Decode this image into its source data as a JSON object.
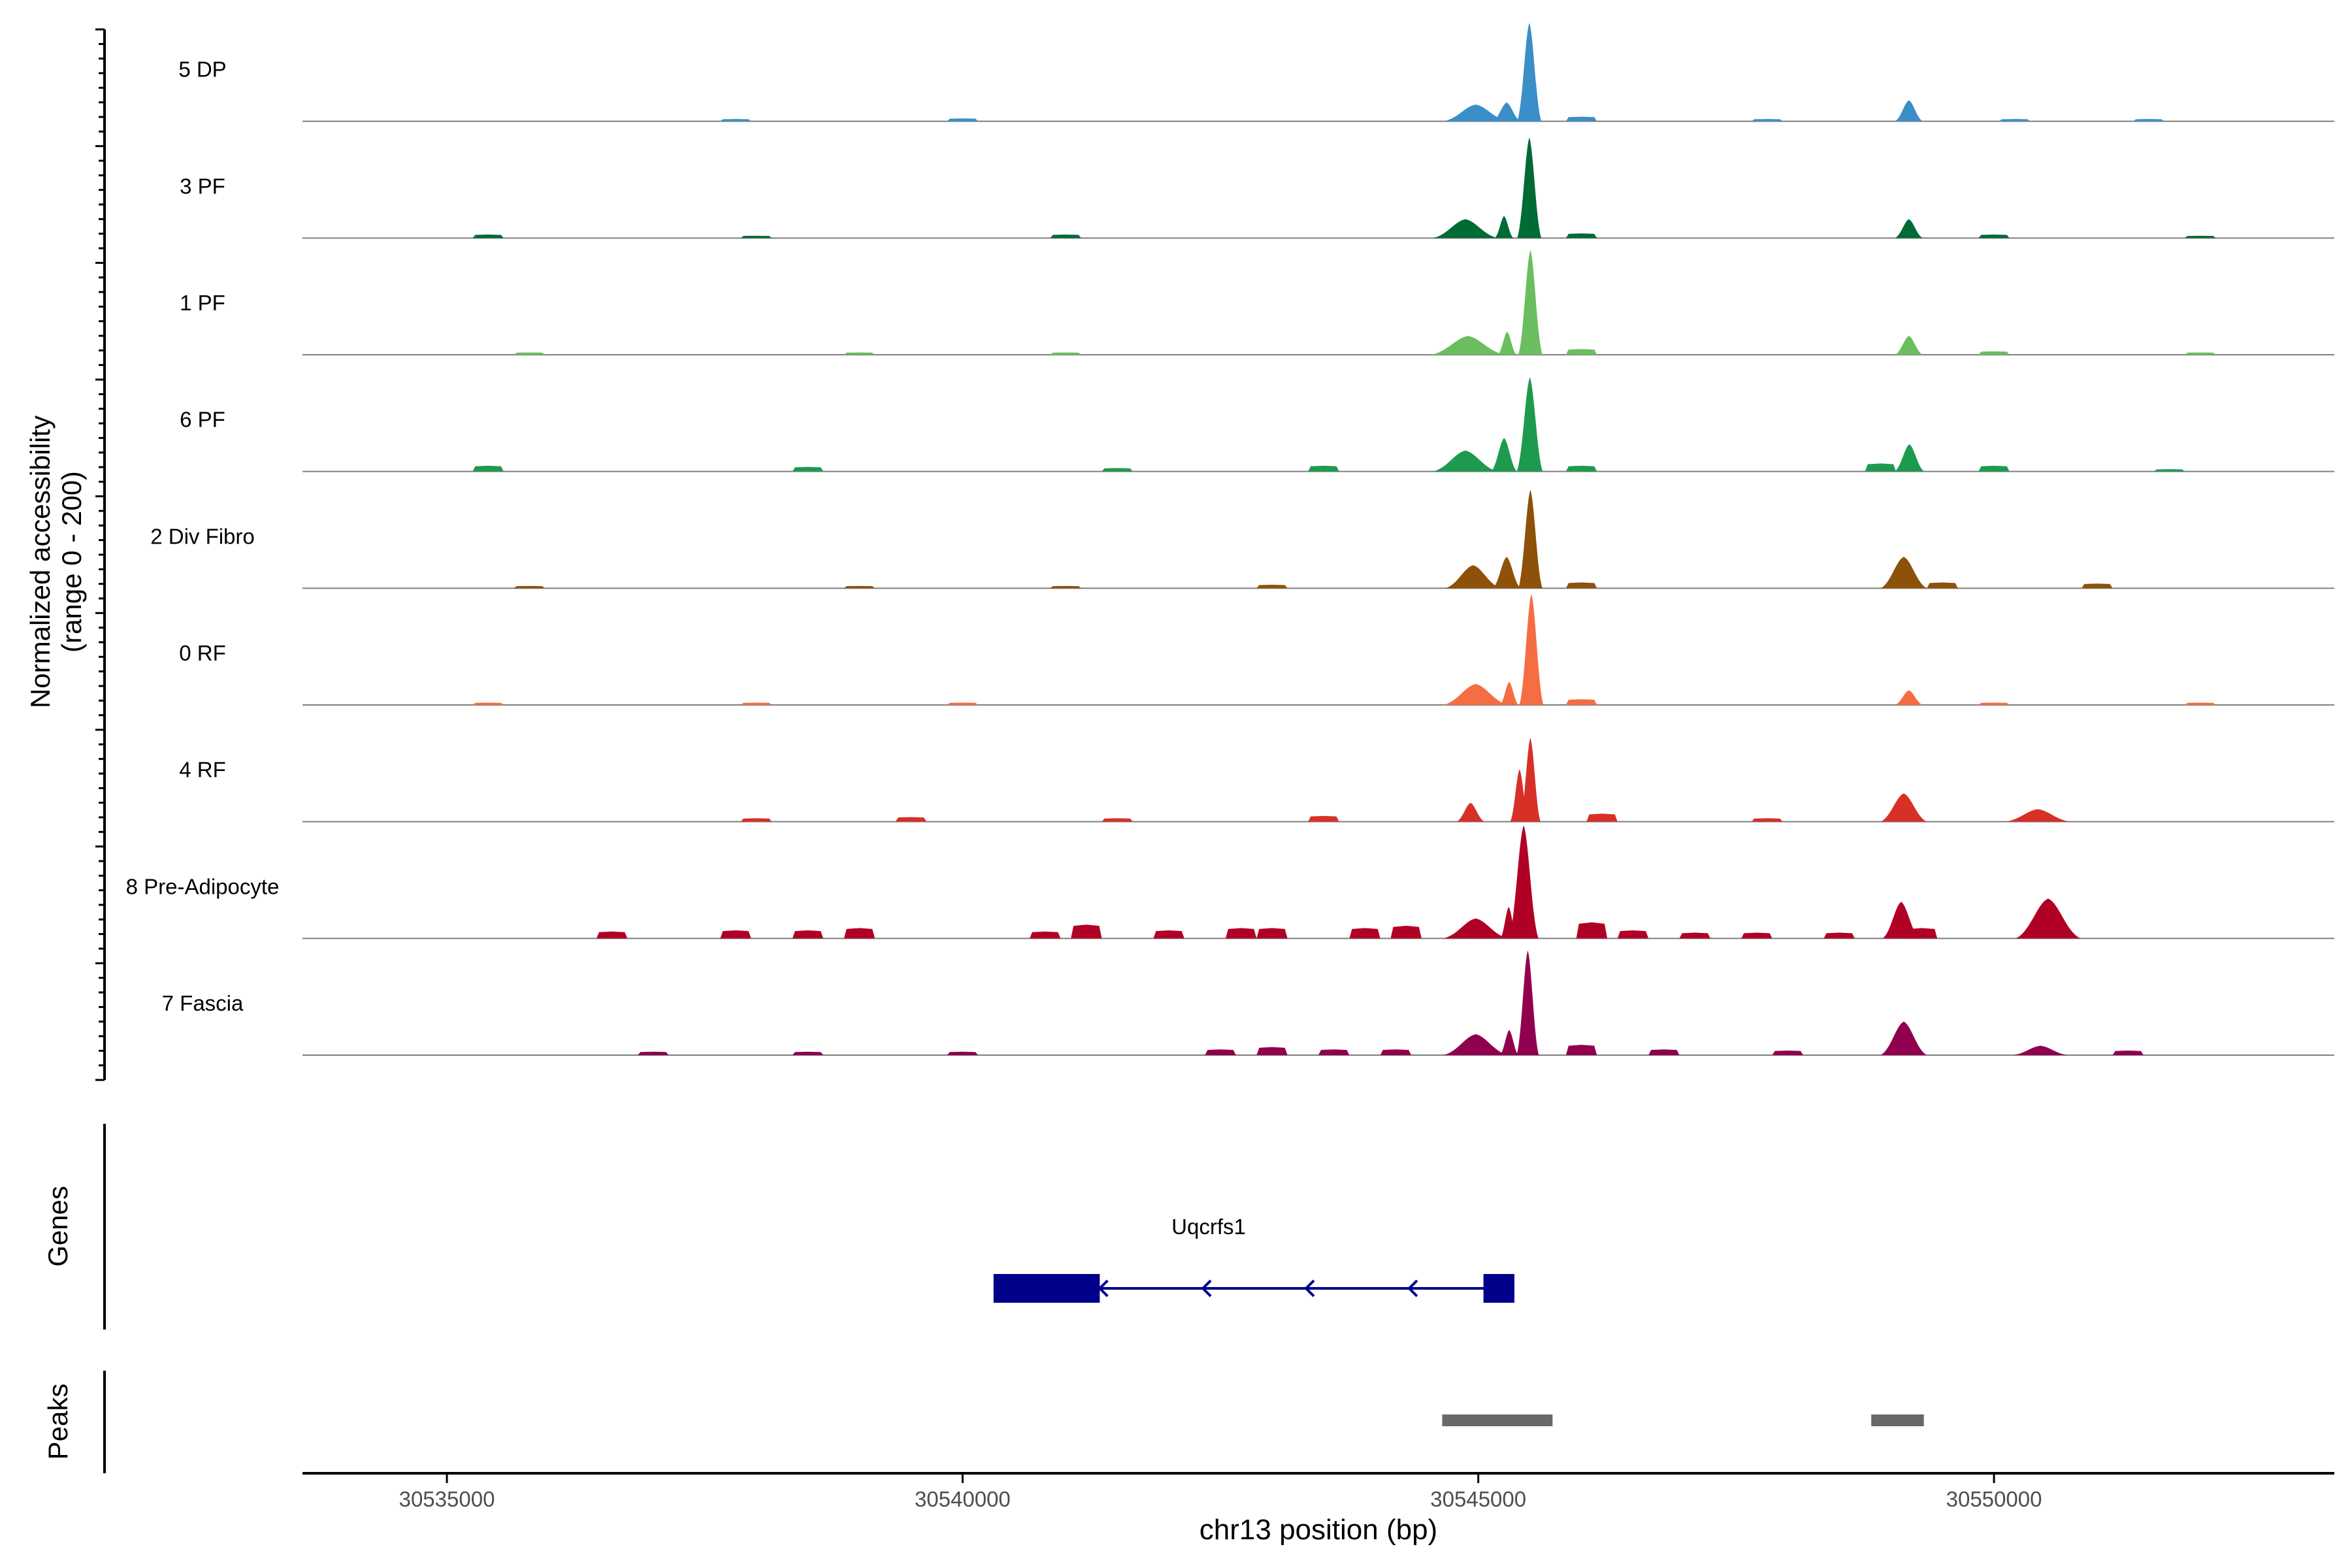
{
  "chart_data": {
    "type": "area",
    "title": "",
    "y_axis_label_line1": "Normalized accessibility",
    "y_axis_label_line2": "(range 0 - 200)",
    "xlabel": "chr13 position (bp)",
    "xlim": [
      30533600,
      30553300
    ],
    "x_ticks": [
      30535000,
      30540000,
      30545000,
      30550000
    ],
    "x_tick_labels": [
      "30535000",
      "30540000",
      "30545000",
      "30550000"
    ],
    "ylim": [
      0,
      200
    ],
    "tracks": [
      {
        "name": "5 DP",
        "color": "#3B8EC8",
        "peaks": [
          [
            30544800,
            30545150,
            32
          ],
          [
            30545200,
            30545350,
            36
          ],
          [
            30545430,
            30545560,
            188
          ],
          [
            30549100,
            30549250,
            40
          ]
        ],
        "noise": [
          [
            30537800,
            4
          ],
          [
            30540000,
            5
          ],
          [
            30546000,
            8
          ],
          [
            30547800,
            4
          ],
          [
            30550200,
            4
          ],
          [
            30551500,
            4
          ]
        ]
      },
      {
        "name": "3 PF",
        "color": "#006B35",
        "peaks": [
          [
            30544700,
            30545050,
            36
          ],
          [
            30545200,
            30545300,
            42
          ],
          [
            30545430,
            30545560,
            192
          ],
          [
            30549100,
            30549250,
            36
          ]
        ],
        "noise": [
          [
            30535400,
            6
          ],
          [
            30538000,
            4
          ],
          [
            30541000,
            6
          ],
          [
            30546000,
            8
          ],
          [
            30550000,
            6
          ],
          [
            30552000,
            4
          ]
        ]
      },
      {
        "name": "1 PF",
        "color": "#6BBE5F",
        "peaks": [
          [
            30544700,
            30545100,
            36
          ],
          [
            30545230,
            30545330,
            44
          ],
          [
            30545440,
            30545570,
            200
          ],
          [
            30549100,
            30549250,
            36
          ]
        ],
        "noise": [
          [
            30535800,
            4
          ],
          [
            30539000,
            4
          ],
          [
            30541000,
            4
          ],
          [
            30546000,
            10
          ],
          [
            30550000,
            6
          ],
          [
            30552000,
            4
          ]
        ]
      },
      {
        "name": "6 PF",
        "color": "#1E9A4F",
        "peaks": [
          [
            30544700,
            30545050,
            40
          ],
          [
            30545180,
            30545320,
            64
          ],
          [
            30545430,
            30545570,
            180
          ],
          [
            30549100,
            30549260,
            52
          ]
        ],
        "noise": [
          [
            30535400,
            10
          ],
          [
            30538500,
            8
          ],
          [
            30541500,
            6
          ],
          [
            30543500,
            10
          ],
          [
            30546000,
            10
          ],
          [
            30548900,
            14
          ],
          [
            30550000,
            10
          ],
          [
            30551700,
            4
          ]
        ]
      },
      {
        "name": "2 Div Fibro",
        "color": "#8D510A",
        "peaks": [
          [
            30544800,
            30545100,
            44
          ],
          [
            30545200,
            30545350,
            60
          ],
          [
            30545440,
            30545570,
            188
          ],
          [
            30549000,
            30549250,
            60
          ]
        ],
        "noise": [
          [
            30535800,
            4
          ],
          [
            30539000,
            4
          ],
          [
            30541000,
            4
          ],
          [
            30543000,
            6
          ],
          [
            30546000,
            10
          ],
          [
            30549500,
            10
          ],
          [
            30551000,
            8
          ]
        ]
      },
      {
        "name": "0 RF",
        "color": "#F46D43",
        "peaks": [
          [
            30544800,
            30545150,
            40
          ],
          [
            30545250,
            30545350,
            44
          ],
          [
            30545450,
            30545580,
            212
          ],
          [
            30549100,
            30549250,
            28
          ]
        ],
        "noise": [
          [
            30535400,
            4
          ],
          [
            30538000,
            4
          ],
          [
            30540000,
            4
          ],
          [
            30546000,
            10
          ],
          [
            30550000,
            4
          ],
          [
            30552000,
            4
          ]
        ]
      },
      {
        "name": "4 RF",
        "color": "#D73027",
        "peaks": [
          [
            30544850,
            30545000,
            36
          ],
          [
            30545350,
            30545450,
            100
          ],
          [
            30545450,
            30545560,
            160
          ],
          [
            30549000,
            30549250,
            54
          ],
          [
            30550250,
            30550600,
            24
          ]
        ],
        "noise": [
          [
            30538000,
            6
          ],
          [
            30539500,
            8
          ],
          [
            30541500,
            6
          ],
          [
            30543500,
            10
          ],
          [
            30546200,
            14
          ],
          [
            30547800,
            6
          ]
        ]
      },
      {
        "name": "8 Pre-Adipocyte",
        "color": "#B10026",
        "peaks": [
          [
            30544800,
            30545150,
            38
          ],
          [
            30545250,
            30545340,
            60
          ],
          [
            30545360,
            30545520,
            216
          ],
          [
            30549000,
            30549200,
            70
          ],
          [
            30550350,
            30550700,
            76
          ]
        ],
        "noise": [
          [
            30536600,
            12
          ],
          [
            30537800,
            14
          ],
          [
            30538500,
            14
          ],
          [
            30539000,
            18
          ],
          [
            30540800,
            12
          ],
          [
            30541200,
            24
          ],
          [
            30542000,
            14
          ],
          [
            30542700,
            18
          ],
          [
            30543000,
            18
          ],
          [
            30543900,
            18
          ],
          [
            30544300,
            22
          ],
          [
            30546100,
            28
          ],
          [
            30546500,
            14
          ],
          [
            30547100,
            10
          ],
          [
            30547700,
            10
          ],
          [
            30548500,
            10
          ],
          [
            30549300,
            18
          ]
        ]
      },
      {
        "name": "7 Fascia",
        "color": "#91004E",
        "peaks": [
          [
            30544800,
            30545150,
            40
          ],
          [
            30545250,
            30545350,
            48
          ],
          [
            30545420,
            30545540,
            200
          ],
          [
            30549000,
            30549250,
            64
          ],
          [
            30550300,
            30550600,
            18
          ]
        ],
        "noise": [
          [
            30537000,
            6
          ],
          [
            30538500,
            6
          ],
          [
            30540000,
            6
          ],
          [
            30542500,
            10
          ],
          [
            30543000,
            14
          ],
          [
            30543600,
            10
          ],
          [
            30544200,
            10
          ],
          [
            30546000,
            18
          ],
          [
            30546800,
            10
          ],
          [
            30548000,
            8
          ],
          [
            30551300,
            8
          ]
        ]
      }
    ],
    "genes_label": "Genes",
    "gene": {
      "name": "Uqcrfs1",
      "color": "#00008B",
      "start": 30540300,
      "end": 30545350,
      "strand": "-",
      "exons": [
        [
          30540300,
          30541330
        ],
        [
          30545050,
          30545350
        ]
      ],
      "arrows": [
        30541330,
        30542330,
        30543330,
        30544330
      ]
    },
    "peaks_label": "Peaks",
    "peak_regions": [
      [
        30544650,
        30545720
      ],
      [
        30548810,
        30549320
      ]
    ],
    "peak_color": "#696969"
  }
}
